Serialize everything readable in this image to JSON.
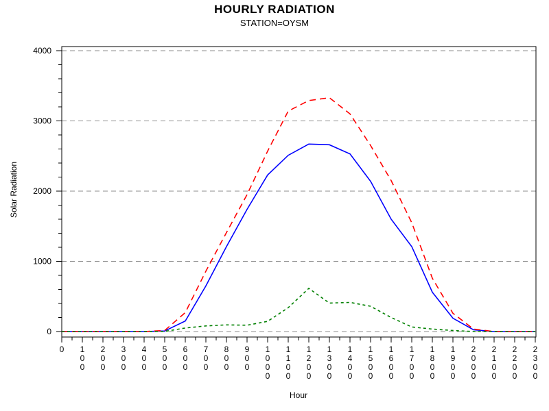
{
  "header": {
    "title": "HOURLY RADIATION",
    "subtitle": "STATION=OYSM"
  },
  "colors": {
    "blue_series": "#0000ff",
    "red_series": "#ff0000",
    "green_series": "#008000",
    "gridline": "#8c8c8c",
    "axis": "#000000",
    "background": "#ffffff"
  },
  "chart_data": {
    "type": "line",
    "title": "HOURLY RADIATION",
    "subtitle": "STATION=OYSM",
    "xlabel": "Hour",
    "ylabel": "Solar Radiation",
    "x": [
      0,
      100,
      200,
      300,
      400,
      500,
      600,
      700,
      800,
      900,
      1000,
      1100,
      1200,
      1300,
      1400,
      1500,
      1600,
      1700,
      1800,
      1900,
      2000,
      2100,
      2200,
      2300
    ],
    "xtick_labels": [
      "0",
      "100",
      "200",
      "300",
      "400",
      "500",
      "600",
      "700",
      "800",
      "900",
      "1000",
      "1100",
      "1200",
      "1300",
      "1400",
      "1500",
      "1600",
      "1700",
      "1800",
      "1900",
      "2000",
      "2100",
      "2200",
      "2300"
    ],
    "ylim": [
      0,
      4000
    ],
    "yticks": [
      0,
      1000,
      2000,
      3000,
      4000
    ],
    "y_minor_step": 200,
    "grid": "horizontal dashed at major y ticks",
    "legend_position": "none",
    "series": [
      {
        "name": "blue-solid",
        "color": "#0000ff",
        "line_style": "solid",
        "values": [
          0,
          0,
          0,
          0,
          0,
          8,
          150,
          650,
          1210,
          1740,
          2230,
          2510,
          2670,
          2660,
          2530,
          2140,
          1600,
          1210,
          560,
          190,
          25,
          0,
          0,
          0
        ]
      },
      {
        "name": "red-dashed",
        "color": "#ff0000",
        "line_style": "dashed",
        "values": [
          0,
          0,
          0,
          0,
          0,
          15,
          270,
          860,
          1410,
          1950,
          2570,
          3140,
          3290,
          3330,
          3100,
          2650,
          2150,
          1550,
          760,
          260,
          35,
          0,
          0,
          0
        ]
      },
      {
        "name": "green-dashed",
        "color": "#008000",
        "line_style": "short-dashed",
        "values": [
          0,
          0,
          0,
          0,
          0,
          2,
          50,
          80,
          95,
          90,
          145,
          340,
          615,
          405,
          415,
          360,
          200,
          65,
          35,
          15,
          0,
          0,
          0,
          0
        ]
      }
    ]
  }
}
